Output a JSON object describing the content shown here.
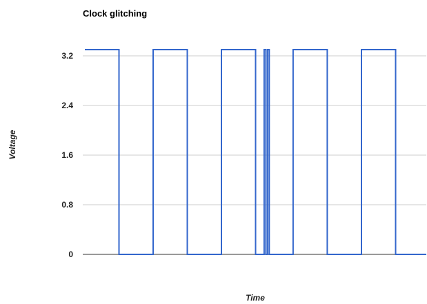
{
  "chart_data": {
    "type": "line",
    "title": "Clock glitching",
    "xlabel": "Time",
    "ylabel": "Voltage",
    "ylim": [
      0,
      3.3
    ],
    "yticks": [
      0,
      0.8,
      1.6,
      2.4,
      3.2
    ],
    "ytick_labels": [
      "0",
      "0.8",
      "1.6",
      "2.4",
      "3.2"
    ],
    "grid": true,
    "xlim": [
      0,
      100
    ],
    "series": [
      {
        "color": "#3366cc",
        "x": [
          0,
          10,
          10,
          20,
          20,
          30,
          30,
          40,
          40,
          50,
          50,
          52.5,
          52.5,
          53,
          53,
          53.5,
          53.5,
          54,
          54,
          61,
          61,
          71,
          71,
          81,
          81,
          91,
          91,
          100
        ],
        "y": [
          3.3,
          3.3,
          0,
          0,
          3.3,
          3.3,
          0,
          0,
          3.3,
          3.3,
          0,
          0,
          3.3,
          3.3,
          0,
          0,
          3.3,
          3.3,
          0,
          0,
          3.3,
          3.3,
          0,
          0,
          3.3,
          3.3,
          0,
          0
        ]
      }
    ]
  }
}
